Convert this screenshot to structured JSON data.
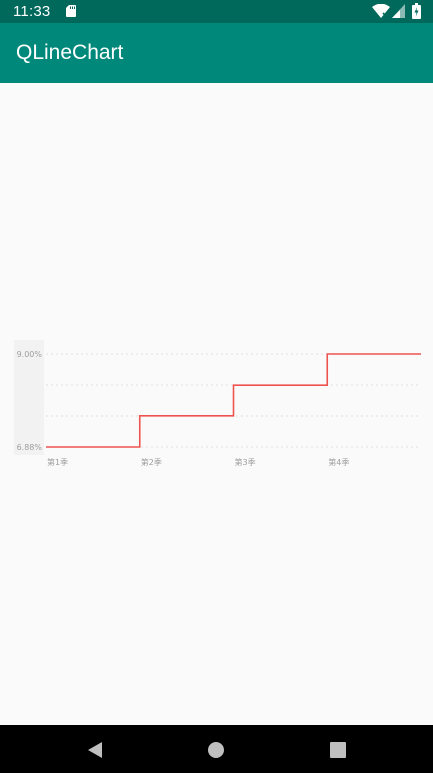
{
  "status_bar": {
    "time": "11:33",
    "icons": [
      "sd-card-icon",
      "wifi-icon",
      "signal-icon",
      "battery-icon"
    ]
  },
  "app_bar": {
    "title": "QLineChart",
    "color": "#00897b",
    "status_color": "#00695c"
  },
  "chart_data": {
    "type": "line",
    "style": "step",
    "categories": [
      "第1季",
      "第2季",
      "第3季",
      "第4季"
    ],
    "y_tick_labels": [
      "9.00%",
      "6.88%"
    ],
    "ylim": [
      6.88,
      9.0
    ],
    "series": [
      {
        "values": [
          6.88,
          7.59,
          8.29,
          9.0
        ],
        "color": "#ef5350"
      }
    ],
    "grid": true,
    "grid_style": "dotted"
  },
  "nav_bar": {
    "icons": [
      "back-icon",
      "home-icon",
      "recents-icon"
    ]
  }
}
